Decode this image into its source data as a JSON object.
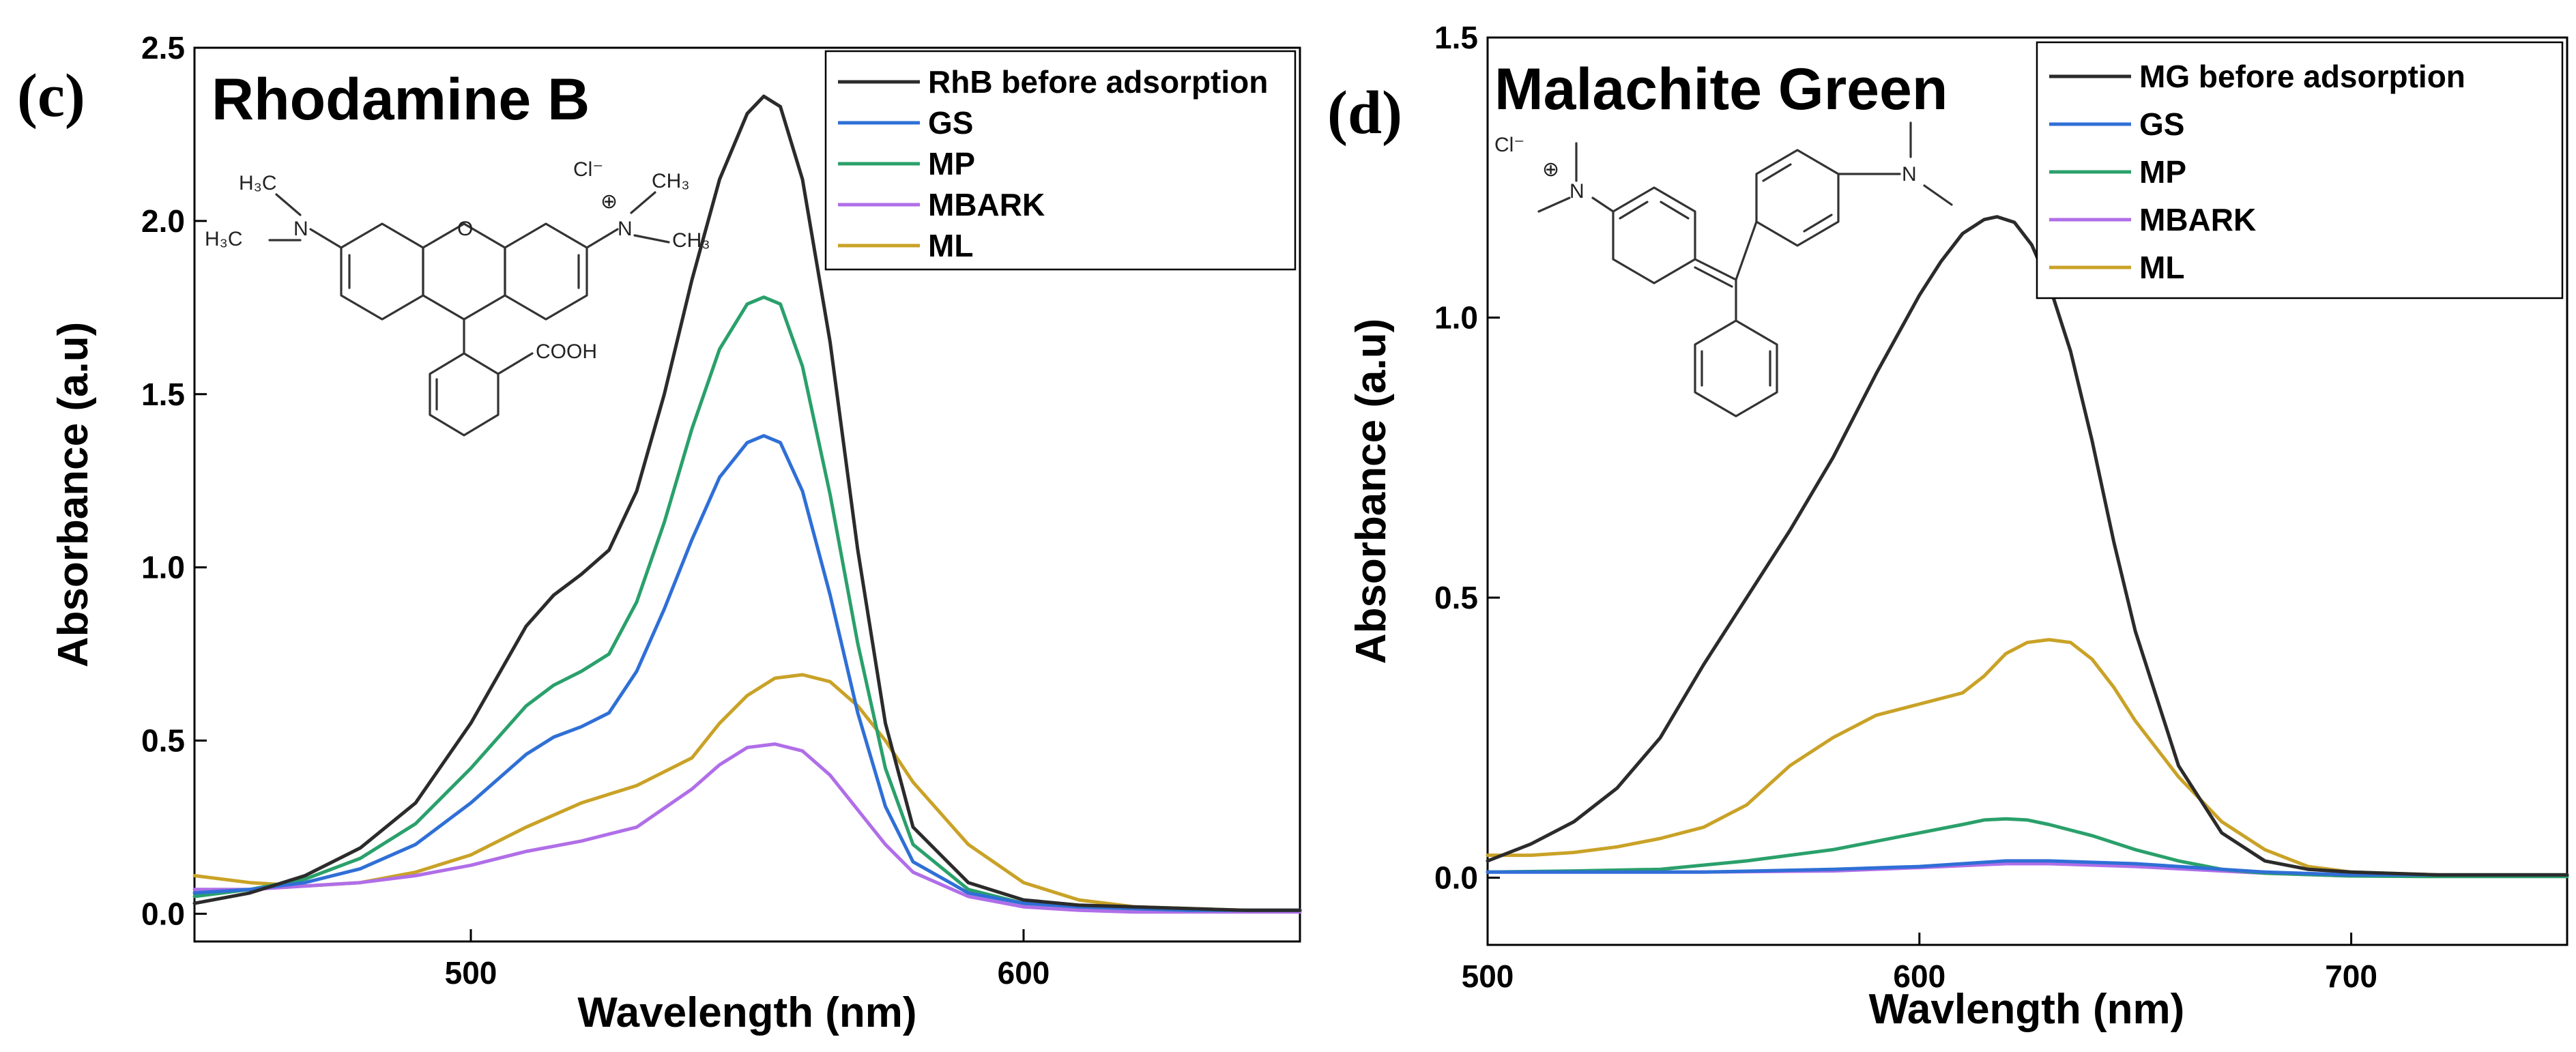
{
  "chart_data": [
    {
      "type": "line",
      "panel": "(c)",
      "title": "Rhodamine B",
      "xlabel": "Wavelength (nm)",
      "ylabel": "Absorbance (a.u)",
      "xlim": [
        450,
        650
      ],
      "ylim": [
        -0.08,
        2.5
      ],
      "xticks": [
        500,
        600
      ],
      "yticks": [
        0.0,
        0.5,
        1.0,
        1.5,
        2.0,
        2.5
      ],
      "ytick_labels": [
        "0.0",
        "0.5",
        "1.0",
        "1.5",
        "2.0",
        "2.5"
      ],
      "legend": "top-right",
      "grid": false,
      "structure_labels": {
        "counterion": "Cl⁻",
        "methyl_a": "H₃C",
        "methyl_b": "H₃C",
        "methyl_c": "CH₃",
        "methyl_d": "CH₃",
        "acid": "COOH",
        "amine_n": "N",
        "iminium_n": "N",
        "ring_o": "O",
        "charge": "⊕"
      },
      "series": [
        {
          "name": "RhB before adsorption",
          "color": "#2b2b2b",
          "x": [
            450,
            460,
            470,
            480,
            490,
            500,
            510,
            515,
            520,
            525,
            530,
            535,
            540,
            545,
            550,
            553,
            556,
            560,
            565,
            570,
            575,
            580,
            590,
            600,
            610,
            620,
            630,
            640,
            650
          ],
          "y": [
            0.03,
            0.06,
            0.11,
            0.19,
            0.32,
            0.55,
            0.83,
            0.92,
            0.98,
            1.05,
            1.22,
            1.5,
            1.83,
            2.12,
            2.31,
            2.36,
            2.33,
            2.12,
            1.65,
            1.05,
            0.55,
            0.25,
            0.09,
            0.04,
            0.025,
            0.02,
            0.015,
            0.01,
            0.01
          ]
        },
        {
          "name": "GS",
          "color": "#2f6fd6",
          "x": [
            450,
            460,
            470,
            480,
            490,
            500,
            510,
            515,
            520,
            525,
            530,
            535,
            540,
            545,
            550,
            553,
            556,
            560,
            565,
            570,
            575,
            580,
            590,
            600,
            610,
            620,
            630,
            640,
            650
          ],
          "y": [
            0.06,
            0.07,
            0.09,
            0.13,
            0.2,
            0.32,
            0.46,
            0.51,
            0.54,
            0.58,
            0.7,
            0.88,
            1.08,
            1.26,
            1.36,
            1.38,
            1.36,
            1.22,
            0.92,
            0.58,
            0.31,
            0.15,
            0.06,
            0.03,
            0.02,
            0.015,
            0.01,
            0.01,
            0.01
          ]
        },
        {
          "name": "MP",
          "color": "#2aa06b",
          "x": [
            450,
            460,
            470,
            480,
            490,
            500,
            510,
            515,
            520,
            525,
            530,
            535,
            540,
            545,
            550,
            553,
            556,
            560,
            565,
            570,
            575,
            580,
            590,
            600,
            610,
            620,
            630,
            640,
            650
          ],
          "y": [
            0.05,
            0.07,
            0.1,
            0.16,
            0.26,
            0.42,
            0.6,
            0.66,
            0.7,
            0.75,
            0.9,
            1.13,
            1.4,
            1.63,
            1.76,
            1.78,
            1.76,
            1.58,
            1.21,
            0.78,
            0.42,
            0.2,
            0.07,
            0.03,
            0.02,
            0.015,
            0.01,
            0.01,
            0.01
          ]
        },
        {
          "name": "MBARK",
          "color": "#b06ee8",
          "x": [
            450,
            460,
            470,
            480,
            490,
            500,
            510,
            520,
            530,
            540,
            545,
            550,
            555,
            560,
            565,
            570,
            575,
            580,
            590,
            600,
            610,
            620,
            630,
            640,
            650
          ],
          "y": [
            0.07,
            0.07,
            0.08,
            0.09,
            0.11,
            0.14,
            0.18,
            0.21,
            0.25,
            0.36,
            0.43,
            0.48,
            0.49,
            0.47,
            0.4,
            0.3,
            0.2,
            0.12,
            0.05,
            0.02,
            0.01,
            0.005,
            0.005,
            0.005,
            0.005
          ]
        },
        {
          "name": "ML",
          "color": "#c9a227",
          "x": [
            450,
            460,
            470,
            480,
            490,
            500,
            510,
            520,
            530,
            540,
            545,
            550,
            555,
            560,
            565,
            570,
            575,
            580,
            590,
            600,
            610,
            620,
            630,
            640,
            650
          ],
          "y": [
            0.11,
            0.09,
            0.08,
            0.09,
            0.12,
            0.17,
            0.25,
            0.32,
            0.37,
            0.45,
            0.55,
            0.63,
            0.68,
            0.69,
            0.67,
            0.6,
            0.5,
            0.38,
            0.2,
            0.09,
            0.04,
            0.02,
            0.015,
            0.01,
            0.01
          ]
        }
      ]
    },
    {
      "type": "line",
      "panel": "(d)",
      "title": "Malachite Green",
      "xlabel": "Wavlength (nm)",
      "ylabel": "Absorbance (a.u)",
      "xlim": [
        500,
        750
      ],
      "ylim": [
        -0.12,
        1.5
      ],
      "xticks": [
        500,
        600,
        700
      ],
      "yticks": [
        0.0,
        0.5,
        1.0,
        1.5
      ],
      "ytick_labels": [
        "0.0",
        "0.5",
        "1.0",
        "1.5"
      ],
      "legend": "top-right",
      "grid": false,
      "structure_labels": {
        "counterion": "Cl⁻",
        "iminium_n": "N",
        "amine_n": "N",
        "charge": "⊕"
      },
      "series": [
        {
          "name": "MG before adsorption",
          "color": "#2b2b2b",
          "x": [
            500,
            510,
            520,
            530,
            540,
            550,
            560,
            570,
            580,
            590,
            600,
            605,
            610,
            615,
            618,
            622,
            626,
            630,
            635,
            640,
            645,
            650,
            660,
            670,
            680,
            690,
            700,
            720,
            750
          ],
          "y": [
            0.03,
            0.06,
            0.1,
            0.16,
            0.25,
            0.38,
            0.5,
            0.62,
            0.75,
            0.9,
            1.04,
            1.1,
            1.15,
            1.175,
            1.18,
            1.17,
            1.13,
            1.06,
            0.94,
            0.78,
            0.6,
            0.44,
            0.2,
            0.08,
            0.03,
            0.015,
            0.01,
            0.005,
            0.005
          ]
        },
        {
          "name": "GS",
          "color": "#2f6fd6",
          "x": [
            500,
            550,
            580,
            600,
            620,
            630,
            650,
            680,
            700,
            750
          ],
          "y": [
            0.01,
            0.01,
            0.015,
            0.02,
            0.03,
            0.03,
            0.025,
            0.01,
            0.005,
            0.005
          ]
        },
        {
          "name": "MP",
          "color": "#2aa06b",
          "x": [
            500,
            520,
            540,
            560,
            580,
            600,
            610,
            615,
            620,
            625,
            630,
            640,
            650,
            660,
            670,
            680,
            700,
            720,
            750
          ],
          "y": [
            0.01,
            0.012,
            0.015,
            0.03,
            0.05,
            0.08,
            0.095,
            0.103,
            0.105,
            0.103,
            0.095,
            0.075,
            0.05,
            0.03,
            0.015,
            0.008,
            0.003,
            0.002,
            0.002
          ]
        },
        {
          "name": "MBARK",
          "color": "#b06ee8",
          "x": [
            500,
            550,
            580,
            600,
            620,
            630,
            650,
            680,
            700,
            750
          ],
          "y": [
            0.01,
            0.01,
            0.012,
            0.018,
            0.025,
            0.025,
            0.02,
            0.008,
            0.003,
            0.003
          ]
        },
        {
          "name": "ML",
          "color": "#c9a227",
          "x": [
            500,
            510,
            520,
            530,
            540,
            550,
            560,
            570,
            580,
            590,
            600,
            610,
            615,
            620,
            625,
            630,
            635,
            640,
            645,
            650,
            660,
            670,
            680,
            690,
            700,
            720,
            750
          ],
          "y": [
            0.04,
            0.04,
            0.045,
            0.055,
            0.07,
            0.09,
            0.13,
            0.2,
            0.25,
            0.29,
            0.31,
            0.33,
            0.36,
            0.4,
            0.42,
            0.425,
            0.42,
            0.39,
            0.34,
            0.28,
            0.18,
            0.1,
            0.05,
            0.02,
            0.01,
            0.005,
            0.005
          ]
        }
      ]
    }
  ]
}
